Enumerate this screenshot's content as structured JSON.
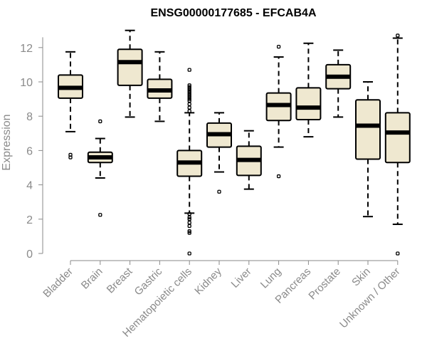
{
  "chart_data": {
    "type": "box",
    "title": "ENSG00000177685 - EFCAB4A",
    "ylabel": "Expression",
    "xlabel": "",
    "ylim": [
      0,
      12.6
    ],
    "yticks": [
      0,
      2,
      4,
      6,
      8,
      10,
      12
    ],
    "grid": false,
    "legend": "none",
    "colors": {
      "box_fill": "#efe8d0",
      "box_stroke": "#000000",
      "axis": "#8a8a8a"
    },
    "categories": [
      "Bladder",
      "Brain",
      "Breast",
      "Gastric",
      "Hematopoietic cells",
      "Kidney",
      "Liver",
      "Lung",
      "Pancreas",
      "Prostate",
      "Skin",
      "Unknown / Other"
    ],
    "boxes": [
      {
        "category": "Bladder",
        "whisker_low": 7.1,
        "q1": 9.05,
        "median": 9.65,
        "q3": 10.4,
        "whisker_high": 11.75,
        "outliers": [
          5.6,
          5.75
        ]
      },
      {
        "category": "Brain",
        "whisker_low": 4.4,
        "q1": 5.3,
        "median": 5.6,
        "q3": 5.9,
        "whisker_high": 6.7,
        "outliers": [
          2.25,
          7.7
        ]
      },
      {
        "category": "Breast",
        "whisker_low": 7.95,
        "q1": 9.8,
        "median": 11.15,
        "q3": 11.9,
        "whisker_high": 13.0,
        "outliers": []
      },
      {
        "category": "Gastric",
        "whisker_low": 7.7,
        "q1": 9.05,
        "median": 9.5,
        "q3": 10.15,
        "whisker_high": 11.75,
        "outliers": []
      },
      {
        "category": "Hematopoietic cells",
        "whisker_low": 2.35,
        "q1": 4.5,
        "median": 5.3,
        "q3": 6.0,
        "whisker_high": 8.2,
        "outliers": [
          0.0,
          1.2,
          1.3,
          1.6,
          1.8,
          2.0,
          2.1,
          2.3,
          8.3,
          8.5,
          8.7,
          8.9,
          9.0,
          9.1,
          9.2,
          9.3,
          9.4,
          9.5,
          9.6,
          9.7,
          9.8,
          10.7
        ]
      },
      {
        "category": "Kidney",
        "whisker_low": 4.75,
        "q1": 6.2,
        "median": 6.95,
        "q3": 7.6,
        "whisker_high": 8.2,
        "outliers": [
          3.6
        ]
      },
      {
        "category": "Liver",
        "whisker_low": 3.75,
        "q1": 4.55,
        "median": 5.45,
        "q3": 6.25,
        "whisker_high": 7.15,
        "outliers": []
      },
      {
        "category": "Lung",
        "whisker_low": 6.2,
        "q1": 7.75,
        "median": 8.65,
        "q3": 9.35,
        "whisker_high": 11.45,
        "outliers": [
          4.5,
          12.05
        ]
      },
      {
        "category": "Pancreas",
        "whisker_low": 6.8,
        "q1": 7.8,
        "median": 8.5,
        "q3": 9.65,
        "whisker_high": 12.25,
        "outliers": []
      },
      {
        "category": "Prostate",
        "whisker_low": 7.95,
        "q1": 9.6,
        "median": 10.3,
        "q3": 11.0,
        "whisker_high": 11.85,
        "outliers": []
      },
      {
        "category": "Skin",
        "whisker_low": 2.15,
        "q1": 5.5,
        "median": 7.45,
        "q3": 8.95,
        "whisker_high": 10.0,
        "outliers": []
      },
      {
        "category": "Unknown / Other",
        "whisker_low": 1.7,
        "q1": 5.3,
        "median": 7.05,
        "q3": 8.2,
        "whisker_high": 12.55,
        "outliers": [
          0.0,
          12.7
        ]
      }
    ]
  }
}
